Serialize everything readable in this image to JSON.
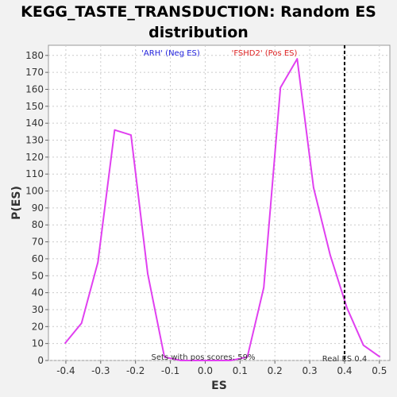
{
  "chart_data": {
    "type": "line",
    "title_line1": "KEGG_TASTE_TRANSDUCTION: Random ES",
    "title_line2": "distribution",
    "xlabel": "ES",
    "ylabel": "P(ES)",
    "xlim": [
      -0.45,
      0.53
    ],
    "ylim": [
      0,
      186
    ],
    "xticks": [
      -0.4,
      -0.3,
      -0.2,
      -0.1,
      0.0,
      0.1,
      0.2,
      0.3,
      0.4,
      0.5
    ],
    "xtick_labels": [
      "-0.4",
      "-0.3",
      "-0.2",
      "-0.1",
      "0.0",
      "0.1",
      "0.2",
      "0.3",
      "0.4",
      "0.5"
    ],
    "yticks": [
      0,
      10,
      20,
      30,
      40,
      50,
      60,
      70,
      80,
      90,
      100,
      110,
      120,
      130,
      140,
      150,
      160,
      170,
      180
    ],
    "grid": true,
    "series": [
      {
        "color": "#e040f0",
        "x": [
          -0.403,
          -0.355,
          -0.308,
          -0.26,
          -0.213,
          -0.165,
          -0.117,
          -0.07,
          -0.022,
          0.026,
          0.073,
          0.121,
          0.168,
          0.216,
          0.264,
          0.311,
          0.359,
          0.407,
          0.454,
          0.502
        ],
        "y": [
          10,
          22,
          58,
          136,
          133,
          51,
          2,
          0,
          0,
          0,
          0,
          2,
          43,
          161,
          178,
          102,
          62,
          31,
          9,
          2
        ]
      }
    ],
    "annotations": {
      "neg_label": "'ARH' (Neg ES)",
      "neg_color": "#2222dd",
      "pos_label": "'FSHD2' (Pos ES)",
      "pos_color": "#dd2222",
      "pos_scores_text": "Sets with pos scores: 59%",
      "real_es_text": "Real ES 0.4",
      "real_es_value": 0.4
    }
  }
}
